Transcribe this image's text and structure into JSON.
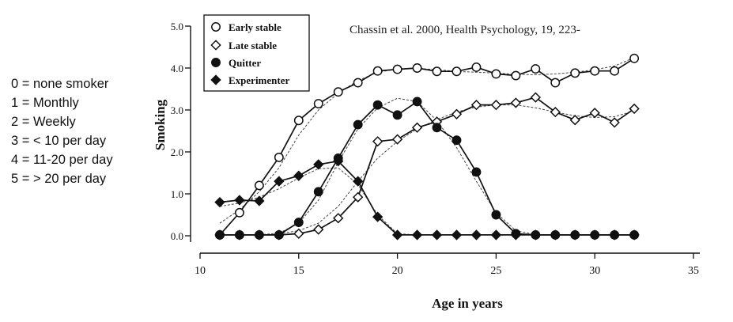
{
  "scale_key": [
    "0 = none smoker",
    "1 = Monthly",
    "2 = Weekly",
    "3 = < 10 per day",
    "4 = 11-20 per day",
    "5 = > 20 per day"
  ],
  "citation": "Chassin et al. 2000, Health Psychology, 19, 223-",
  "chart_data": {
    "type": "line",
    "title": "",
    "xlabel": "Age in years",
    "ylabel": "Smoking",
    "xlim": [
      10,
      35
    ],
    "ylim": [
      0,
      5
    ],
    "x_ticks": [
      10,
      15,
      20,
      25,
      30,
      35
    ],
    "y_ticks": [
      0,
      1,
      2,
      3,
      4,
      5
    ],
    "x_tick_labels": [
      "10",
      "15",
      "20",
      "25",
      "30",
      "35"
    ],
    "y_tick_labels": [
      "0.0",
      "1.0",
      "2.0",
      "3.0",
      "4.0",
      "5.0"
    ],
    "legend_position": "top-left",
    "grid": false,
    "x": [
      11,
      12,
      13,
      14,
      15,
      16,
      17,
      18,
      19,
      20,
      21,
      22,
      23,
      24,
      25,
      26,
      27,
      28,
      29,
      30,
      31,
      32
    ],
    "series": [
      {
        "name": "Early stable",
        "marker": "open-circle",
        "values": [
          0.02,
          0.55,
          1.2,
          1.87,
          2.75,
          3.15,
          3.43,
          3.65,
          3.93,
          3.97,
          4.0,
          3.92,
          3.92,
          4.02,
          3.86,
          3.82,
          3.98,
          3.65,
          3.88,
          3.93,
          3.93,
          4.23
        ],
        "fitted": [
          0.3,
          0.62,
          1.05,
          1.62,
          2.4,
          3.0,
          3.4,
          3.7,
          3.9,
          3.98,
          3.99,
          3.96,
          3.92,
          3.9,
          3.88,
          3.85,
          3.84,
          3.86,
          3.9,
          3.96,
          4.05,
          4.25
        ]
      },
      {
        "name": "Late stable",
        "marker": "open-diamond",
        "values": [
          0.02,
          0.02,
          0.02,
          0.02,
          0.05,
          0.15,
          0.42,
          0.92,
          2.25,
          2.3,
          2.58,
          2.72,
          2.9,
          3.12,
          3.12,
          3.17,
          3.3,
          2.95,
          2.76,
          2.93,
          2.7,
          3.03
        ],
        "fitted": [
          0.02,
          0.02,
          0.03,
          0.05,
          0.12,
          0.3,
          0.7,
          1.3,
          1.85,
          2.25,
          2.55,
          2.77,
          2.95,
          3.07,
          3.12,
          3.12,
          3.05,
          2.95,
          2.86,
          2.82,
          2.84,
          2.98
        ]
      },
      {
        "name": "Quitter",
        "marker": "filled-circle",
        "values": [
          0.02,
          0.02,
          0.02,
          0.02,
          0.32,
          1.05,
          1.85,
          2.65,
          3.12,
          2.88,
          3.2,
          2.58,
          2.28,
          1.52,
          0.5,
          0.05,
          0.02,
          0.02,
          0.02,
          0.02,
          0.02,
          0.02
        ],
        "fitted": [
          0.02,
          0.02,
          0.02,
          0.06,
          0.3,
          0.85,
          1.75,
          2.55,
          3.05,
          3.28,
          3.2,
          2.75,
          2.1,
          1.3,
          0.55,
          0.12,
          0.03,
          0.02,
          0.02,
          0.02,
          0.02,
          0.02
        ]
      },
      {
        "name": "Experimenter",
        "marker": "filled-diamond",
        "values": [
          0.8,
          0.85,
          0.83,
          1.3,
          1.43,
          1.7,
          1.78,
          1.3,
          0.45,
          0.02,
          0.02,
          0.02,
          0.02,
          0.02,
          0.02,
          0.02,
          0.02,
          0.02,
          0.02,
          0.02,
          0.02,
          0.02
        ],
        "fitted": [
          0.7,
          0.78,
          0.92,
          1.12,
          1.38,
          1.6,
          1.62,
          1.22,
          0.5,
          0.05,
          0.02,
          0.02,
          0.02,
          0.02,
          0.02,
          0.02,
          0.02,
          0.02,
          0.02,
          0.02,
          0.02,
          0.02
        ]
      }
    ]
  }
}
